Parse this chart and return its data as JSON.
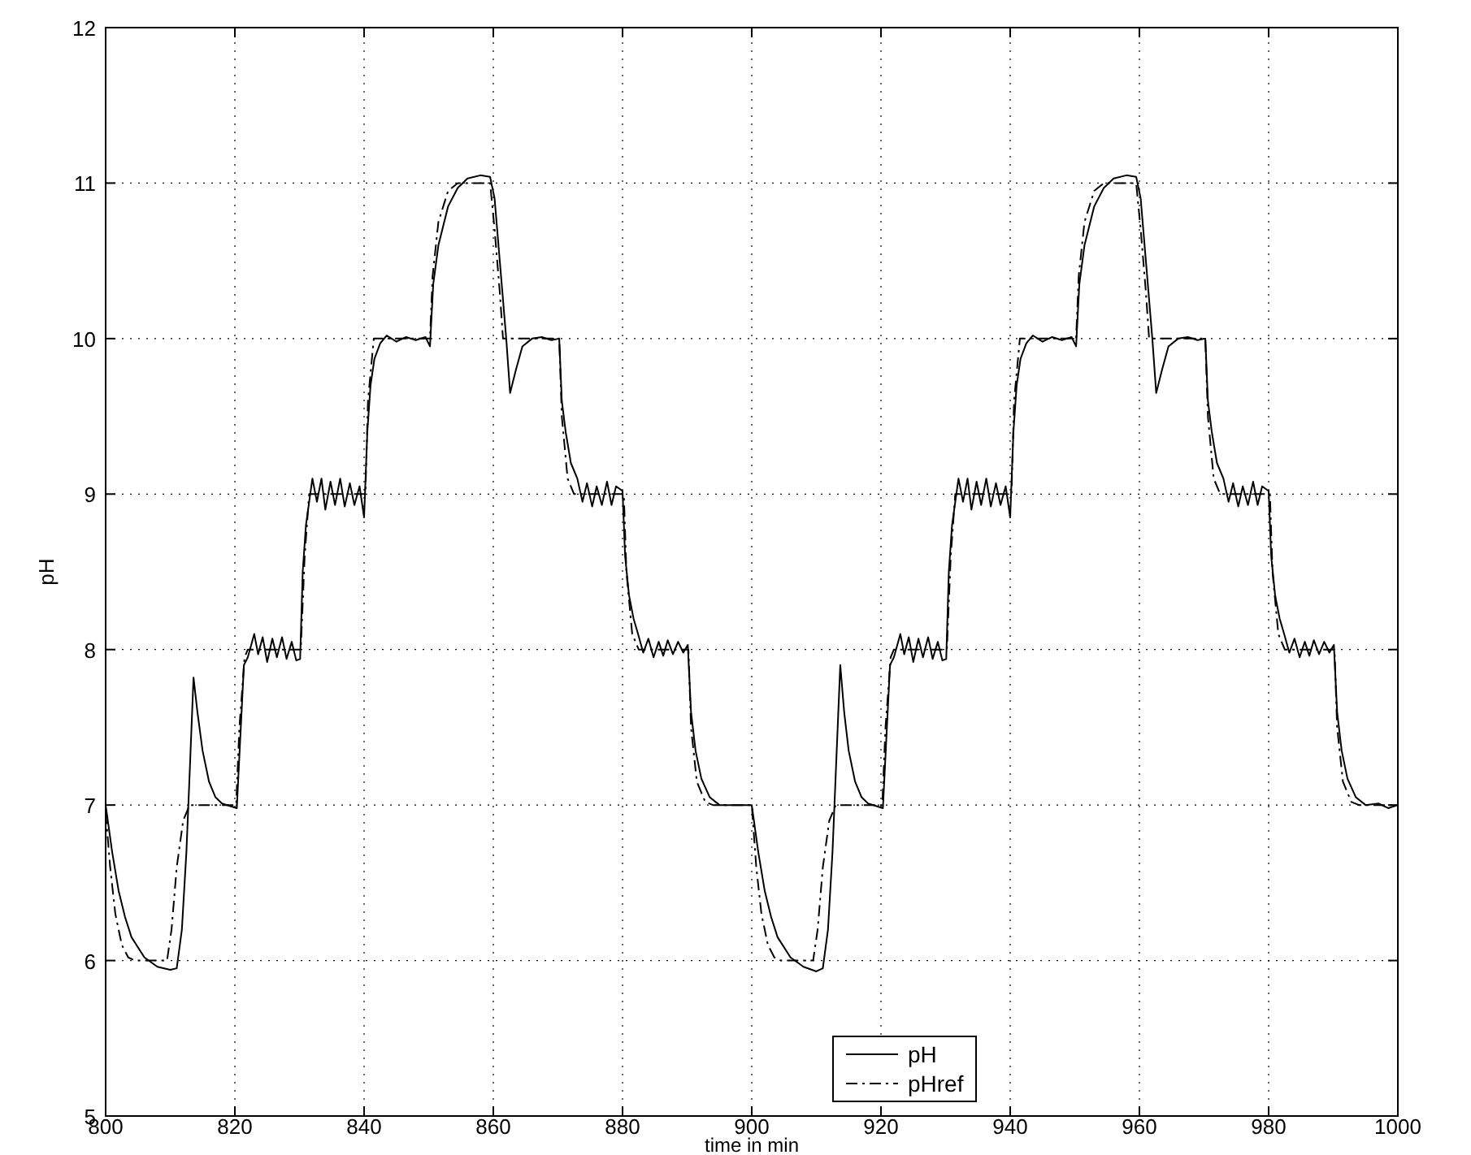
{
  "chart_data": {
    "type": "line",
    "xlabel": "time in min",
    "ylabel": "pH",
    "xlim": [
      800,
      1000
    ],
    "ylim": [
      5,
      12
    ],
    "xticks": [
      800,
      820,
      840,
      860,
      880,
      900,
      920,
      940,
      960,
      980,
      1000
    ],
    "yticks": [
      5,
      6,
      7,
      8,
      9,
      10,
      11,
      12
    ],
    "grid": true,
    "legend": "bottom",
    "series": [
      {
        "name": "pH",
        "color": "#000000",
        "line_style": "solid",
        "x": [
          800,
          801,
          802,
          803,
          804,
          806,
          808,
          810,
          811,
          811.8,
          812.5,
          813,
          813.6,
          814.2,
          815,
          816,
          817,
          818,
          820.3,
          820.8,
          821.4,
          822,
          823,
          823.6,
          824.3,
          825,
          825.8,
          826.5,
          827.3,
          828,
          828.8,
          829.5,
          830.1,
          830.5,
          831,
          831.5,
          832,
          832.7,
          833.4,
          834,
          834.8,
          835.5,
          836.3,
          837,
          837.8,
          838.5,
          839.3,
          840,
          840.5,
          841,
          841.6,
          842.5,
          843.5,
          845,
          846.5,
          848,
          849.5,
          850.2,
          850.7,
          851.5,
          853,
          854.5,
          856,
          858,
          859.5,
          860.2,
          861,
          862,
          862.6,
          863.5,
          864.5,
          866,
          867.5,
          869,
          870.2,
          870.6,
          871.2,
          872,
          873,
          873.8,
          874.5,
          875.3,
          876,
          876.8,
          877.6,
          878.3,
          879,
          880,
          880.4,
          881,
          881.7,
          882.4,
          883.2,
          884,
          884.8,
          885.6,
          886.3,
          887,
          887.8,
          888.6,
          889.4,
          890.1,
          890.6,
          891.3,
          892.2,
          893.5,
          895,
          900,
          901,
          902,
          903,
          904,
          906,
          908,
          910,
          911,
          911.8,
          912.5,
          913,
          913.7,
          914.3,
          915,
          916,
          917,
          918,
          920.3,
          920.8,
          921.4,
          922,
          923,
          923.6,
          924.3,
          925,
          925.8,
          926.5,
          927.3,
          928,
          928.8,
          929.5,
          930.1,
          930.5,
          931,
          931.5,
          932,
          932.7,
          933.4,
          934,
          934.8,
          935.5,
          936.3,
          937,
          937.8,
          938.5,
          939.3,
          940,
          940.5,
          941,
          941.6,
          942.5,
          943.5,
          945,
          946.5,
          948,
          949.5,
          950.2,
          950.7,
          951.5,
          953,
          954.5,
          956,
          958,
          959.5,
          960.2,
          961,
          962,
          962.6,
          963.5,
          964.5,
          966,
          967.5,
          969,
          970.2,
          970.6,
          971.2,
          972,
          973,
          973.8,
          974.5,
          975.3,
          976,
          976.8,
          977.6,
          978.3,
          979,
          980,
          980.4,
          981,
          981.7,
          982.4,
          983.2,
          984,
          984.8,
          985.6,
          986.3,
          987,
          987.8,
          988.6,
          989.4,
          990.1,
          990.6,
          991.3,
          992.2,
          993.5,
          995,
          997,
          998.5,
          1000
        ],
        "values": [
          7.0,
          6.7,
          6.45,
          6.28,
          6.15,
          6.02,
          5.96,
          5.94,
          5.95,
          6.2,
          6.7,
          7.2,
          7.82,
          7.6,
          7.35,
          7.15,
          7.05,
          7.01,
          6.98,
          7.4,
          7.9,
          7.95,
          8.1,
          7.97,
          8.08,
          7.92,
          8.07,
          7.95,
          8.08,
          7.94,
          8.05,
          7.93,
          7.94,
          8.5,
          8.8,
          8.95,
          9.1,
          8.95,
          9.1,
          8.9,
          9.08,
          8.93,
          9.1,
          8.92,
          9.07,
          8.93,
          9.05,
          8.85,
          9.4,
          9.7,
          9.87,
          9.97,
          10.02,
          9.98,
          10.01,
          9.99,
          10.01,
          9.95,
          10.35,
          10.6,
          10.85,
          10.97,
          11.03,
          11.05,
          11.04,
          10.9,
          10.5,
          10.0,
          9.65,
          9.8,
          9.95,
          10.0,
          10.01,
          9.99,
          10.0,
          9.6,
          9.4,
          9.2,
          9.1,
          8.95,
          9.07,
          8.92,
          9.05,
          8.93,
          9.08,
          8.93,
          9.05,
          9.02,
          8.6,
          8.35,
          8.2,
          8.1,
          7.98,
          8.07,
          7.95,
          8.05,
          7.96,
          8.06,
          7.97,
          8.05,
          7.98,
          8.03,
          7.6,
          7.35,
          7.17,
          7.05,
          7.0,
          7.0,
          6.7,
          6.45,
          6.28,
          6.15,
          6.02,
          5.96,
          5.93,
          5.95,
          6.2,
          6.7,
          7.2,
          7.9,
          7.6,
          7.35,
          7.15,
          7.05,
          7.01,
          6.98,
          7.4,
          7.9,
          7.95,
          8.1,
          7.97,
          8.08,
          7.92,
          8.07,
          7.95,
          8.08,
          7.94,
          8.05,
          7.93,
          7.94,
          8.5,
          8.8,
          8.95,
          9.1,
          8.95,
          9.1,
          8.9,
          9.08,
          8.93,
          9.1,
          8.92,
          9.07,
          8.93,
          9.05,
          8.85,
          9.4,
          9.7,
          9.87,
          9.97,
          10.02,
          9.98,
          10.01,
          9.99,
          10.01,
          9.95,
          10.35,
          10.6,
          10.85,
          10.97,
          11.03,
          11.05,
          11.04,
          10.9,
          10.5,
          10.0,
          9.65,
          9.8,
          9.95,
          10.0,
          10.01,
          9.99,
          10.0,
          9.6,
          9.4,
          9.2,
          9.1,
          8.95,
          9.07,
          8.92,
          9.05,
          8.93,
          9.08,
          8.93,
          9.05,
          9.02,
          8.6,
          8.35,
          8.2,
          8.1,
          7.98,
          8.07,
          7.95,
          8.05,
          7.96,
          8.06,
          7.97,
          8.05,
          7.98,
          8.03,
          7.6,
          7.35,
          7.17,
          7.05,
          7.0,
          7.01,
          6.98,
          7.0
        ]
      },
      {
        "name": "pHref",
        "color": "#000000",
        "line_style": "dashed",
        "x": [
          800,
          800.7,
          801.5,
          802.5,
          803.5,
          804.5,
          809.5,
          810.2,
          811,
          812,
          813,
          820.2,
          820.7,
          821.5,
          822,
          830.2,
          830.8,
          831.5,
          840.2,
          840.6,
          841.5,
          850.2,
          850.6,
          851.5,
          853,
          854.5,
          859.5,
          860.2,
          861,
          861.5,
          870.2,
          870.6,
          871.5,
          872.5,
          880.2,
          880.6,
          881.5,
          882.5,
          890.2,
          890.6,
          891.5,
          892.8,
          894,
          900,
          900.7,
          901.5,
          902.5,
          903.5,
          904.5,
          909.5,
          910.2,
          911,
          912,
          913,
          920.2,
          920.7,
          921.5,
          922,
          930.2,
          930.8,
          931.5,
          940.2,
          940.6,
          941.5,
          950.2,
          950.6,
          951.5,
          953,
          954.5,
          959.5,
          960.2,
          961,
          961.5,
          970.2,
          970.6,
          971.5,
          972.5,
          980.2,
          980.6,
          981.5,
          982.5,
          990.2,
          990.6,
          991.5,
          992.8,
          994,
          1000
        ],
        "values": [
          6.95,
          6.6,
          6.3,
          6.1,
          6.02,
          6.0,
          6.0,
          6.2,
          6.6,
          6.9,
          7.0,
          7.0,
          7.5,
          7.95,
          8.0,
          8.0,
          8.6,
          9.0,
          9.0,
          9.6,
          10.0,
          10.0,
          10.4,
          10.75,
          10.95,
          11.0,
          11.0,
          10.7,
          10.3,
          10.0,
          10.0,
          9.5,
          9.1,
          9.0,
          9.0,
          8.5,
          8.1,
          8.0,
          8.0,
          7.5,
          7.15,
          7.02,
          7.0,
          7.0,
          6.6,
          6.3,
          6.1,
          6.02,
          6.0,
          6.0,
          6.2,
          6.6,
          6.9,
          7.0,
          7.0,
          7.5,
          7.95,
          8.0,
          8.0,
          8.6,
          9.0,
          9.0,
          9.6,
          10.0,
          10.0,
          10.4,
          10.75,
          10.95,
          11.0,
          11.0,
          10.7,
          10.3,
          10.0,
          10.0,
          9.5,
          9.1,
          9.0,
          9.0,
          8.5,
          8.1,
          8.0,
          8.0,
          7.5,
          7.15,
          7.02,
          7.0,
          7.0
        ]
      }
    ]
  }
}
